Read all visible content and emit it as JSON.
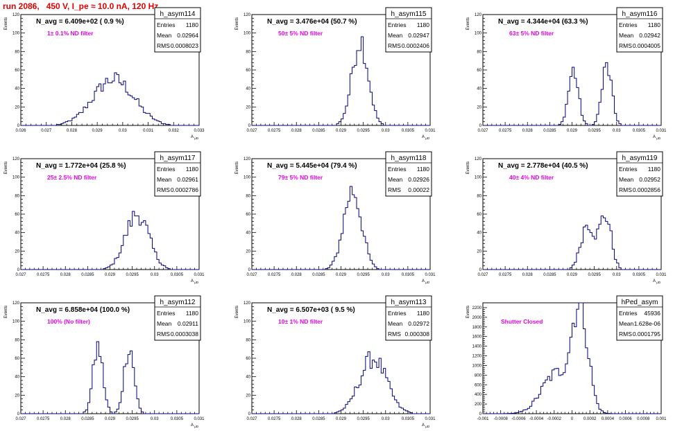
{
  "header": {
    "run_title": "run 2086,   450 V, I_pe ≈ 10.0 nA, 120 Hz"
  },
  "colors": {
    "hist_line": "#00007a",
    "filter_text": "#e600e6",
    "title_text": "#e00000"
  },
  "chart_data": [
    {
      "type": "histogram",
      "name": "h_asym114",
      "navg": "N_avg = 6.409e+02 ( 0.9 %)",
      "filter": "1± 0.1% ND filter",
      "stats": {
        "Entries": "1180",
        "Mean": "0.02964",
        "RMS": "0.0008023"
      },
      "ylabel": "Events",
      "xlabel": "A_{ μD}",
      "xlim": [
        0.026,
        0.033
      ],
      "ylim": [
        0,
        120
      ],
      "xticks": [
        "0.026",
        "0.027",
        "0.028",
        "0.029",
        "0.03",
        "0.031",
        "0.032",
        "0.033"
      ],
      "yticks": [
        "0",
        "20",
        "40",
        "60",
        "80",
        "100",
        "120"
      ],
      "shape": [
        {
          "mu": 0.02964,
          "sigma": 0.0008,
          "amp": 50
        }
      ]
    },
    {
      "type": "histogram",
      "name": "h_asym115",
      "navg": "N_avg = 3.476e+04 (50.7 %)",
      "filter": "50± 5% ND filter",
      "stats": {
        "Entries": "1180",
        "Mean": "0.02947",
        "RMS": "0.0002406"
      },
      "ylabel": "Events",
      "xlabel": "A_{ μD}",
      "xlim": [
        0.027,
        0.031
      ],
      "ylim": [
        0,
        120
      ],
      "xticks": [
        "0.027",
        "0.0275",
        "0.028",
        "0.0285",
        "0.029",
        "0.0295",
        "0.03",
        "0.0305",
        "0.031"
      ],
      "yticks": [
        "0",
        "20",
        "40",
        "60",
        "80",
        "100",
        "120"
      ],
      "shape": [
        {
          "mu": 0.02943,
          "sigma": 0.00018,
          "amp": 93
        }
      ]
    },
    {
      "type": "histogram",
      "name": "h_asym116",
      "navg": "N_avg = 4.344e+04 (63.3 %)",
      "filter": "63± 5% ND filter",
      "stats": {
        "Entries": "1180",
        "Mean": "0.02942",
        "RMS": "0.0004005"
      },
      "ylabel": "Events",
      "xlabel": "A_{ μD}",
      "xlim": [
        0.027,
        0.031
      ],
      "ylim": [
        0,
        120
      ],
      "xticks": [
        "0.027",
        "0.0275",
        "0.028",
        "0.0285",
        "0.029",
        "0.0295",
        "0.03",
        "0.0305",
        "0.031"
      ],
      "yticks": [
        "0",
        "20",
        "40",
        "60",
        "80",
        "100",
        "120"
      ],
      "shape": [
        {
          "mu": 0.02903,
          "sigma": 0.00011,
          "amp": 60
        },
        {
          "mu": 0.02978,
          "sigma": 0.00011,
          "amp": 64
        }
      ]
    },
    {
      "type": "histogram",
      "name": "h_asym117",
      "navg": "N_avg = 1.772e+04 (25.8 %)",
      "filter": "25± 2.5% ND filter",
      "stats": {
        "Entries": "1180",
        "Mean": "0.02961",
        "RMS": "0.0002786"
      },
      "ylabel": "Events",
      "xlabel": "A_{ μD}",
      "xlim": [
        0.027,
        0.031
      ],
      "ylim": [
        0,
        120
      ],
      "xticks": [
        "0.027",
        "0.0275",
        "0.028",
        "0.0285",
        "0.029",
        "0.0295",
        "0.03",
        "0.0305",
        "0.031"
      ],
      "yticks": [
        "0",
        "20",
        "40",
        "60",
        "80",
        "100",
        "120"
      ],
      "shape": [
        {
          "mu": 0.02961,
          "sigma": 0.00026,
          "amp": 60
        }
      ]
    },
    {
      "type": "histogram",
      "name": "h_asym118",
      "navg": "N_avg = 5.445e+04 (79.4 %)",
      "filter": "79± 5% ND filter",
      "stats": {
        "Entries": "1180",
        "Mean": "0.02926",
        "RMS": "0.00022"
      },
      "ylabel": "Events",
      "xlabel": "A_{ μD}",
      "xlim": [
        0.027,
        0.031
      ],
      "ylim": [
        0,
        120
      ],
      "xticks": [
        "0.027",
        "0.0275",
        "0.028",
        "0.0285",
        "0.029",
        "0.0295",
        "0.03",
        "0.0305",
        "0.031"
      ],
      "yticks": [
        "0",
        "20",
        "40",
        "60",
        "80",
        "100",
        "120"
      ],
      "shape": [
        {
          "mu": 0.02926,
          "sigma": 0.0002,
          "amp": 86
        }
      ]
    },
    {
      "type": "histogram",
      "name": "h_asym119",
      "navg": "N_avg = 2.778e+04 (40.5 %)",
      "filter": "40± 4% ND filter",
      "stats": {
        "Entries": "1180",
        "Mean": "0.02952",
        "RMS": "0.0002856"
      },
      "ylabel": "Events",
      "xlabel": "A_{ μD}",
      "xlim": [
        0.027,
        0.031
      ],
      "ylim": [
        0,
        120
      ],
      "xticks": [
        "0.027",
        "0.0275",
        "0.028",
        "0.0285",
        "0.029",
        "0.0295",
        "0.03",
        "0.0305",
        "0.031"
      ],
      "yticks": [
        "0",
        "20",
        "40",
        "60",
        "80",
        "100",
        "120"
      ],
      "shape": [
        {
          "mu": 0.02935,
          "sigma": 0.00015,
          "amp": 50
        },
        {
          "mu": 0.02975,
          "sigma": 0.00013,
          "amp": 58
        }
      ]
    },
    {
      "type": "histogram",
      "name": "h_asym112",
      "navg": "N_avg = 6.858e+04 (100.0 %)",
      "filter": "100% (No filter)",
      "stats": {
        "Entries": "1180",
        "Mean": "0.02911",
        "RMS": "0.0003038"
      },
      "ylabel": "Events",
      "xlabel": "A_{ μD}",
      "xlim": [
        0.027,
        0.031
      ],
      "ylim": [
        0,
        120
      ],
      "xticks": [
        "0.027",
        "0.0275",
        "0.028",
        "0.0285",
        "0.029",
        "0.0295",
        "0.03",
        "0.0305",
        "0.031"
      ],
      "yticks": [
        "0",
        "20",
        "40",
        "60",
        "80",
        "100",
        "120"
      ],
      "shape": [
        {
          "mu": 0.02873,
          "sigma": 0.00011,
          "amp": 72
        },
        {
          "mu": 0.02943,
          "sigma": 0.00011,
          "amp": 74
        }
      ]
    },
    {
      "type": "histogram",
      "name": "h_asym113",
      "navg": "N_avg = 6.507e+03 ( 9.5 %)",
      "filter": "10± 1% ND filter",
      "stats": {
        "Entries": "1180",
        "Mean": "0.02972",
        "RMS": "0.000308"
      },
      "ylabel": "Events",
      "xlabel": "A_{ μD}",
      "xlim": [
        0.027,
        0.031
      ],
      "ylim": [
        0,
        120
      ],
      "xticks": [
        "0.027",
        "0.0275",
        "0.028",
        "0.0285",
        "0.029",
        "0.0295",
        "0.03",
        "0.0305",
        "0.031"
      ],
      "yticks": [
        "0",
        "20",
        "40",
        "60",
        "80",
        "100",
        "120"
      ],
      "shape": [
        {
          "mu": 0.02972,
          "sigma": 0.0003,
          "amp": 60
        }
      ]
    },
    {
      "type": "histogram",
      "name": "hPed_asym",
      "navg": "",
      "filter": "Shutter Closed",
      "stats": {
        "Entries": "45936",
        "Mean": "1.628e-06",
        "RMS": "0.0001795"
      },
      "ylabel": "Events",
      "xlabel": "",
      "xlim": [
        -0.001,
        0.001
      ],
      "ylim": [
        0,
        2300
      ],
      "xticks": [
        "-0.001",
        "-0.0008",
        "-0.0006",
        "-0.0004",
        "-0.0002",
        "0",
        "0.0002",
        "0.0004",
        "0.0006",
        "0.0008",
        "0.001"
      ],
      "yticks": [
        "0",
        "200",
        "400",
        "600",
        "800",
        "1000",
        "1200",
        "1400",
        "1600",
        "1800",
        "2000",
        "2200"
      ],
      "shape": [
        {
          "mu": 9e-05,
          "sigma": 9e-05,
          "amp": 2150
        },
        {
          "mu": -0.00018,
          "sigma": 0.00016,
          "amp": 820
        }
      ]
    }
  ]
}
